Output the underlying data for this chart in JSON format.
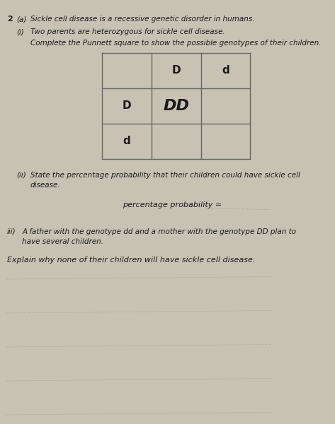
{
  "bg_color": "#c8c2b4",
  "paper_color": "#e8e4d8",
  "title_num": "2",
  "part_a_label": "(a)",
  "part_a_text": "Sickle cell disease is a recessive genetic disorder in humans.",
  "part_i_label": "(i)",
  "part_i_text": "Two parents are heterozygous for sickle cell disease.",
  "part_i_instruction": "Complete the Punnett square to show the possible genotypes of their children.",
  "punnett_col_headers": [
    "D",
    "d"
  ],
  "punnett_row_headers": [
    "D",
    "d"
  ],
  "punnett_cell_DD": "DD",
  "part_ii_label": "(ii)",
  "part_ii_text1": "State the percentage probability that their children could have sickle cell",
  "part_ii_text2": "disease.",
  "part_ii_answer_label": "percentage probability =",
  "part_iii_label": "iii)",
  "part_iii_text1": "A father with the genotype dd and a mother with the genotype DD plan to",
  "part_iii_text2": "have several children.",
  "part_iii_explain": "Explain why none of their children will have sickle cell disease.",
  "num_answer_lines": 6,
  "line_color": "#999999",
  "text_color": "#1a1a1a",
  "table_line_color": "#666666"
}
